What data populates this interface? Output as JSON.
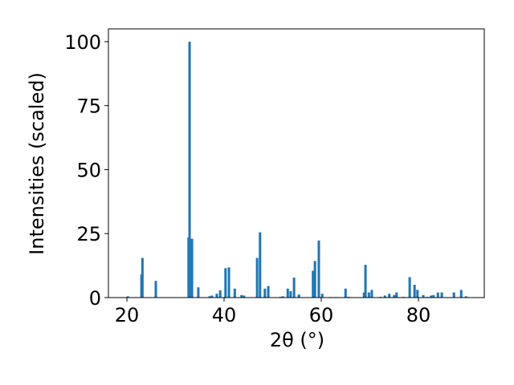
{
  "chart_data": {
    "type": "bar",
    "xlabel": "2θ (°)",
    "ylabel": "Intensities (scaled)",
    "color": "#1f77b4",
    "x": [
      20.2,
      23.0,
      23.2,
      25.95,
      32.7,
      32.9,
      33.4,
      34.7,
      37.0,
      37.5,
      38.5,
      39.2,
      40.3,
      41.0,
      42.2,
      43.6,
      44.1,
      46.8,
      47.4,
      48.4,
      49.1,
      51.6,
      52.1,
      53.1,
      53.7,
      54.4,
      55.4,
      58.3,
      58.7,
      59.5,
      60.2,
      62.0,
      63.0,
      65.0,
      65.6,
      68.8,
      69.1,
      69.8,
      70.4,
      72.2,
      73.1,
      74.0,
      75.0,
      75.5,
      76.9,
      78.2,
      79.2,
      79.8,
      81.0,
      81.8,
      82.6,
      83.1,
      84.0,
      84.8,
      87.3,
      88.8,
      89.8
    ],
    "values": [
      0.5,
      9,
      15.5,
      6.5,
      23.5,
      100,
      23,
      4,
      0.5,
      0.8,
      1.5,
      2.8,
      11.5,
      11.8,
      3.5,
      1,
      0.8,
      15.5,
      25.5,
      3.5,
      4.5,
      0.3,
      0.5,
      3.5,
      2.5,
      7.8,
      1.2,
      10.5,
      14.3,
      22.3,
      1.5,
      0.2,
      0.2,
      3.5,
      0.3,
      2,
      12.8,
      2,
      3,
      0.3,
      0.8,
      1.5,
      1,
      2,
      0.3,
      8,
      5,
      3,
      1,
      0.3,
      0.8,
      1,
      2,
      2,
      2,
      3,
      0.5
    ],
    "xlim": [
      16.2,
      93.55
    ],
    "ylim": [
      0,
      105
    ],
    "xticks": [
      20,
      40,
      60,
      80
    ],
    "yticks": [
      0,
      25,
      50,
      75,
      100
    ]
  }
}
